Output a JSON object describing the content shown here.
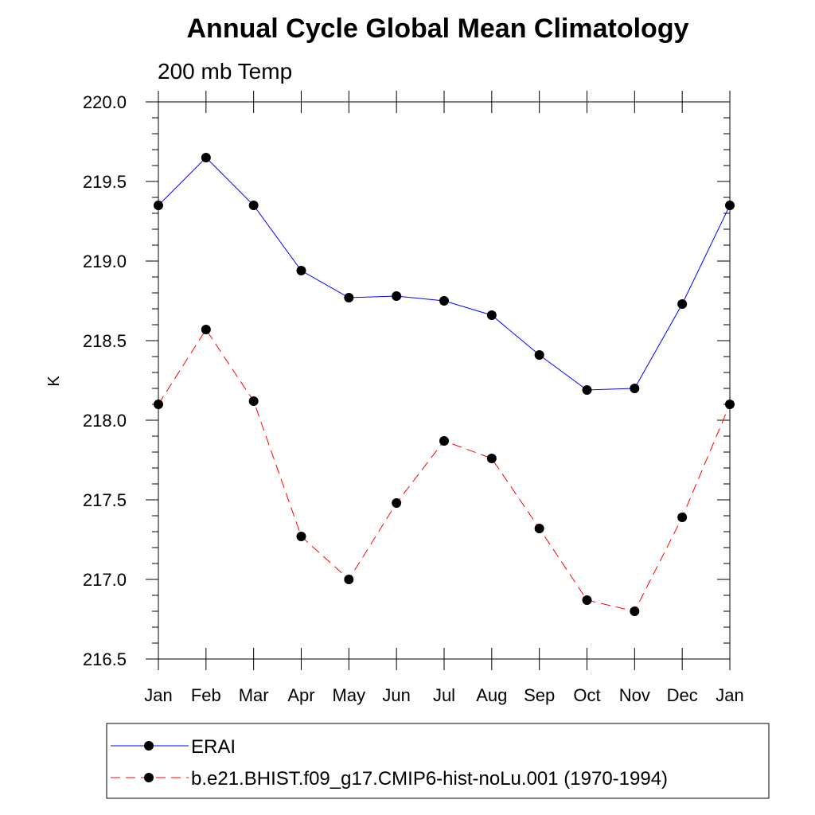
{
  "chart_data": {
    "type": "line",
    "title": "Annual Cycle Global Mean Climatology",
    "subtitle": "200 mb Temp",
    "xlabel": "",
    "ylabel": "K",
    "categories": [
      "Jan",
      "Feb",
      "Mar",
      "Apr",
      "May",
      "Jun",
      "Jul",
      "Aug",
      "Sep",
      "Oct",
      "Nov",
      "Dec",
      "Jan"
    ],
    "ylim": [
      216.5,
      220.0
    ],
    "yticks": [
      "216.5",
      "217.0",
      "217.5",
      "218.0",
      "218.5",
      "219.0",
      "219.5",
      "220.0"
    ],
    "series": [
      {
        "name": "ERAI",
        "color": "#0000ff",
        "dashed": false,
        "values": [
          219.35,
          219.65,
          219.35,
          218.94,
          218.77,
          218.78,
          218.75,
          218.66,
          218.41,
          218.19,
          218.2,
          218.73,
          219.35
        ]
      },
      {
        "name": "b.e21.BHIST.f09_g17.CMIP6-hist-noLu.001 (1970-1994)",
        "color": "#ff0000",
        "dashed": true,
        "values": [
          218.1,
          218.57,
          218.12,
          217.27,
          217.0,
          217.48,
          217.87,
          217.76,
          217.32,
          216.87,
          216.8,
          217.39,
          218.1
        ]
      }
    ],
    "grid": false,
    "legend_position": "bottom"
  }
}
